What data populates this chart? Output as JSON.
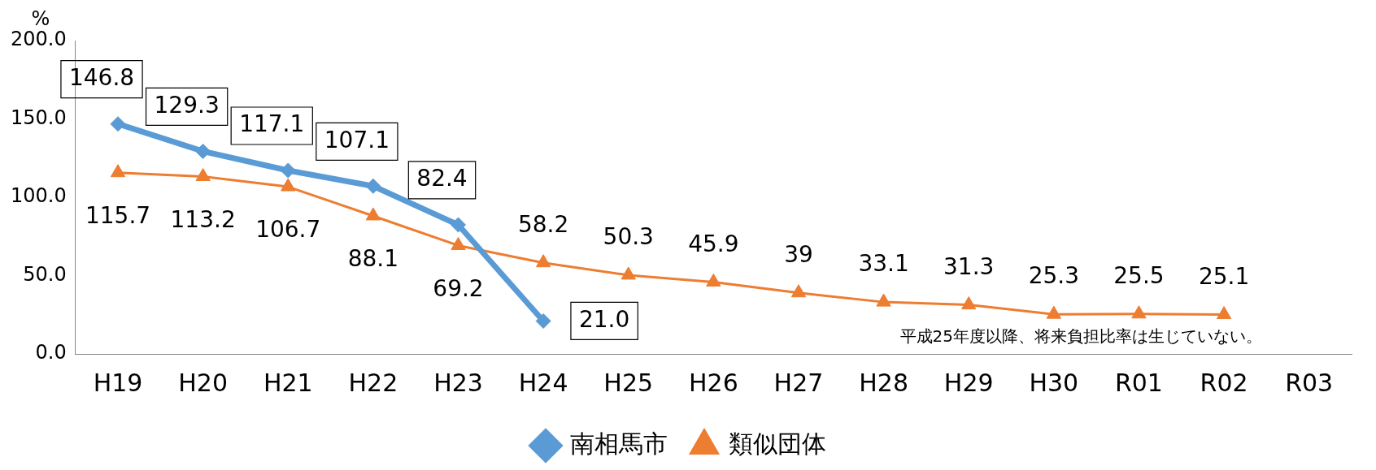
{
  "chart_data": {
    "type": "line",
    "ylabel": "%",
    "categories": [
      "H19",
      "H20",
      "H21",
      "H22",
      "H23",
      "H24",
      "H25",
      "H26",
      "H27",
      "H28",
      "H29",
      "H30",
      "R01",
      "R02",
      "R03"
    ],
    "series": [
      {
        "name": "南相馬市",
        "color": "#5b9bd5",
        "marker": "diamond",
        "values": [
          146.8,
          129.3,
          117.1,
          107.1,
          82.4,
          21.0,
          null,
          null,
          null,
          null,
          null,
          null,
          null,
          null,
          null
        ],
        "value_labels": [
          "146.8",
          "129.3",
          "117.1",
          "107.1",
          "82.4",
          "21.0",
          null,
          null,
          null,
          null,
          null,
          null,
          null,
          null,
          null
        ]
      },
      {
        "name": "類似団体",
        "color": "#ed7d31",
        "marker": "triangle",
        "values": [
          115.7,
          113.2,
          106.7,
          88.1,
          69.2,
          58.2,
          50.3,
          45.9,
          39,
          33.1,
          31.3,
          25.3,
          25.5,
          25.1,
          null
        ],
        "value_labels": [
          "115.7",
          "113.2",
          "106.7",
          "88.1",
          "69.2",
          "58.2",
          "50.3",
          "45.9",
          "39",
          "33.1",
          "31.3",
          "25.3",
          "25.5",
          "25.1",
          null
        ]
      }
    ],
    "ylim": [
      0,
      200
    ],
    "yticks": [
      {
        "value": 0,
        "label": "0.0"
      },
      {
        "value": 50,
        "label": "50.0"
      },
      {
        "value": 100,
        "label": "100.0"
      },
      {
        "value": 150,
        "label": "150.0"
      },
      {
        "value": 200,
        "label": "200.0"
      }
    ],
    "grid": false,
    "legend": "bottom",
    "annotations": [
      "平成25年度以降、将来負担比率は生じていない。"
    ]
  }
}
